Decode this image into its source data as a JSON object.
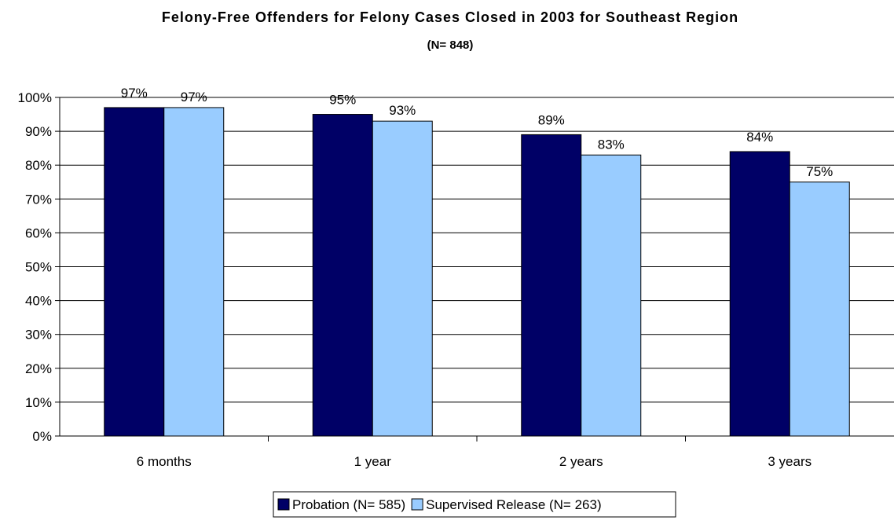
{
  "chart_data": {
    "type": "bar",
    "title": "Felony-Free Offenders for Felony Cases Closed in 2003 for Southeast Region",
    "subtitle": "(N= 848)",
    "xlabel": "",
    "ylabel": "",
    "categories": [
      "6 months",
      "1 year",
      "2 years",
      "3 years"
    ],
    "series": [
      {
        "name": "Probation (N= 585)",
        "values": [
          97,
          95,
          89,
          84
        ],
        "color": "#000066"
      },
      {
        "name": "Supervised Release (N= 263)",
        "values": [
          97,
          93,
          83,
          75
        ],
        "color": "#99CCFF"
      }
    ],
    "value_format": "percent",
    "ylim": [
      0,
      100
    ],
    "ytick_step": 10,
    "ytick_labels": [
      "0%",
      "10%",
      "20%",
      "30%",
      "40%",
      "50%",
      "60%",
      "70%",
      "80%",
      "90%",
      "100%"
    ],
    "data_labels": [
      [
        "97%",
        "95%",
        "89%",
        "84%"
      ],
      [
        "97%",
        "93%",
        "83%",
        "75%"
      ]
    ],
    "grid": true,
    "legend_position": "bottom"
  }
}
